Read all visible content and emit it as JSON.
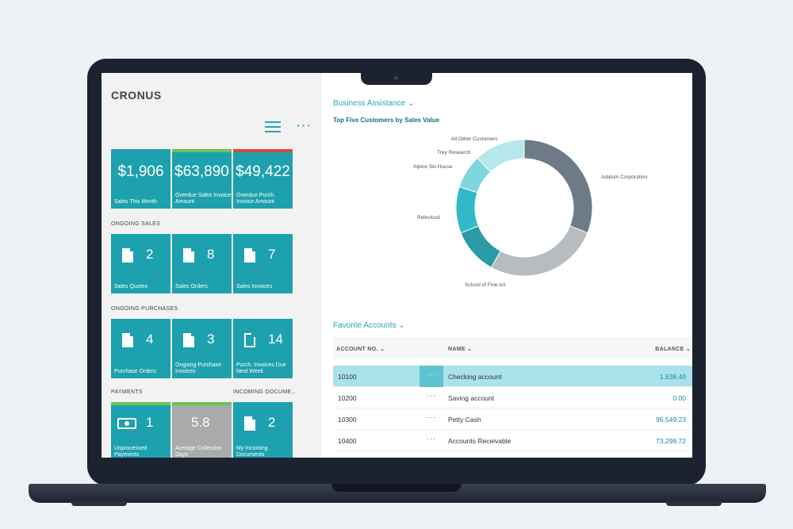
{
  "brand": "CRONUS",
  "left_panel": {
    "kpis": [
      {
        "amount": "$1,906",
        "caption": "Sales This Month",
        "bar": ""
      },
      {
        "amount": "$63,890",
        "caption": "Overdue Sales Invoice Amount",
        "bar": "#6ec15a"
      },
      {
        "amount": "$49,422",
        "caption": "Overdue Purch. Invoice Amount",
        "bar": "#d94b3c"
      }
    ],
    "ongoing_sales_label": "ONGOING SALES",
    "ongoing_sales": [
      {
        "count": "2",
        "caption": "Sales Quotes",
        "icon": "document-icon"
      },
      {
        "count": "8",
        "caption": "Sales Orders",
        "icon": "document-icon"
      },
      {
        "count": "7",
        "caption": "Sales Invoices",
        "icon": "document-icon"
      }
    ],
    "ongoing_purchases_label": "ONGOING PURCHASES",
    "ongoing_purchases": [
      {
        "count": "4",
        "caption": "Purchase Orders",
        "icon": "document-icon"
      },
      {
        "count": "3",
        "caption": "Ongoing Purchase Invoices",
        "icon": "document-icon"
      },
      {
        "count": "14",
        "caption": "Purch. Invoices Due Next Week",
        "icon": "document-outline-icon"
      }
    ],
    "payments_label": "PAYMENTS",
    "incoming_label": "INCOMING DOCUME...",
    "bottom_tiles": [
      {
        "count": "1",
        "caption": "Unprocessed Payments",
        "icon": "money-icon"
      },
      {
        "count": "5.8",
        "caption": "Average Collection Days",
        "icon": ""
      },
      {
        "count": "2",
        "caption": "My Incoming Documents",
        "icon": "document-icon"
      }
    ]
  },
  "business_assistance": {
    "title": "Business Assistance",
    "chart_title": "Top Five Customers by Sales Value"
  },
  "chart_data": {
    "type": "pie",
    "title": "Top Five Customers by Sales Value",
    "slices": [
      {
        "label": "Adatum Corporation",
        "value": 31,
        "color": "#6e7a85"
      },
      {
        "label": "School of Fine Art",
        "value": 27,
        "color": "#b7bcc1"
      },
      {
        "label": "Relecloud",
        "value": 11,
        "color": "#2a9aa5"
      },
      {
        "label": "Alpine Ski House",
        "value": 11,
        "color": "#32b9c7"
      },
      {
        "label": "Trey Research",
        "value": 8,
        "color": "#7fd6de"
      },
      {
        "label": "All Other Customers",
        "value": 12,
        "color": "#b6e7ec"
      }
    ]
  },
  "favorite_accounts": {
    "title": "Favorite Accounts",
    "columns": {
      "account": "ACCOUNT NO.",
      "name": "NAME",
      "balance": "BALANCE"
    },
    "rows": [
      {
        "no": "10100",
        "name": "Checking account",
        "balance": "1,638.40"
      },
      {
        "no": "10200",
        "name": "Saving account",
        "balance": "0.00"
      },
      {
        "no": "10300",
        "name": "Petty Cash",
        "balance": "96,549.23"
      },
      {
        "no": "10400",
        "name": "Accounts Receivable",
        "balance": "73,298.72"
      }
    ]
  }
}
